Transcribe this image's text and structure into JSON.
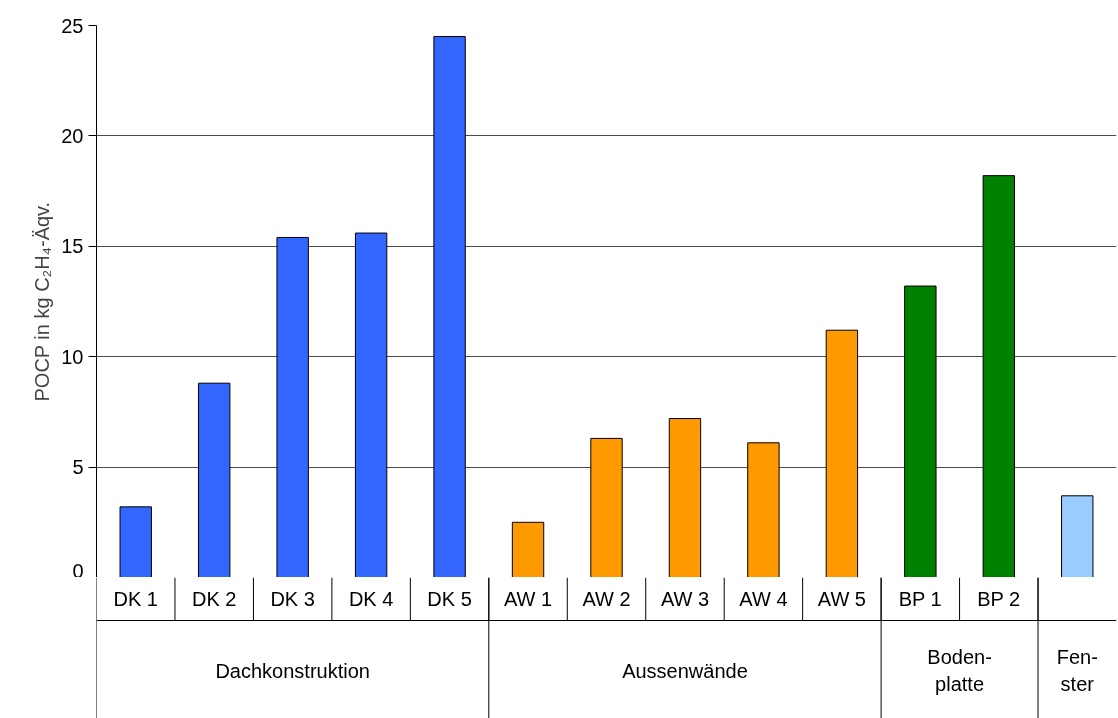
{
  "chart_data": {
    "type": "bar",
    "ylabel": "POCP in kg C₂H₄-Äqv.",
    "categories": [
      "DK 1",
      "DK 2",
      "DK 3",
      "DK 4",
      "DK 5",
      "AW 1",
      "AW 2",
      "AW 3",
      "AW 4",
      "AW 5",
      "BP 1",
      "BP 2",
      null
    ],
    "series": [
      {
        "color": "#3366ff",
        "values": [
          3.2,
          8.8,
          15.4,
          15.6,
          24.5,
          null,
          null,
          null,
          null,
          null,
          null,
          null,
          null
        ]
      },
      {
        "color": "#ff9900",
        "values": [
          null,
          null,
          null,
          null,
          null,
          2.5,
          6.3,
          7.2,
          6.1,
          11.2,
          null,
          null,
          null
        ]
      },
      {
        "color": "#008000",
        "values": [
          null,
          null,
          null,
          null,
          null,
          null,
          null,
          null,
          null,
          null,
          13.2,
          18.2,
          null
        ]
      },
      {
        "color": "#99ccff",
        "values": [
          null,
          null,
          null,
          null,
          null,
          null,
          null,
          null,
          null,
          null,
          null,
          null,
          3.7
        ]
      }
    ],
    "annotations": [
      "Dachkonstruktion",
      "Aussenwände",
      "Boden-\nplatte",
      "Fen-\nster"
    ],
    "ylim": [
      0,
      25
    ],
    "yticks": [
      0,
      5,
      10,
      15,
      20,
      25
    ],
    "grid": "y"
  }
}
